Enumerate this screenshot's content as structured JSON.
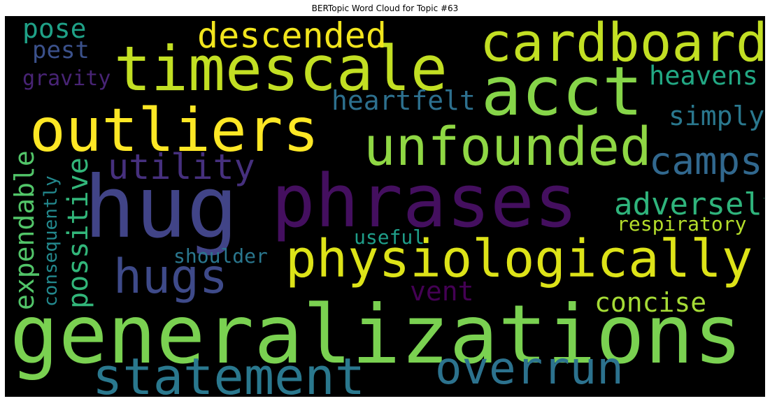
{
  "title": "BERTopic Word Cloud for Topic #63",
  "background_color": "#000000",
  "words": [
    {
      "text": "generalizations",
      "color": "#7ad151"
    },
    {
      "text": "phrases",
      "color": "#440f5f"
    },
    {
      "text": "hug",
      "color": "#414487"
    },
    {
      "text": "timescale",
      "color": "#c2df23"
    },
    {
      "text": "outliers",
      "color": "#fde725"
    },
    {
      "text": "acct",
      "color": "#86d549"
    },
    {
      "text": "cardboard",
      "color": "#c2df23"
    },
    {
      "text": "physiologically",
      "color": "#dde318"
    },
    {
      "text": "unfounded",
      "color": "#8fd744"
    },
    {
      "text": "statement",
      "color": "#2a788e"
    },
    {
      "text": "overrun",
      "color": "#2c728e"
    },
    {
      "text": "hugs",
      "color": "#3e4a89"
    },
    {
      "text": "descended",
      "color": "#f1e51d"
    },
    {
      "text": "utility",
      "color": "#46307e"
    },
    {
      "text": "camps",
      "color": "#31688e"
    },
    {
      "text": "adversely",
      "color": "#2fb47c"
    },
    {
      "text": "heartfelt",
      "color": "#2d708e"
    },
    {
      "text": "heavens",
      "color": "#22a884"
    },
    {
      "text": "simply",
      "color": "#2a788e"
    },
    {
      "text": "concise",
      "color": "#a5db36"
    },
    {
      "text": "respiratory",
      "color": "#b5de2b"
    },
    {
      "text": "possitive",
      "color": "#32b67a"
    },
    {
      "text": "expendable",
      "color": "#52c569"
    },
    {
      "text": "consequently",
      "color": "#23898e"
    },
    {
      "text": "vent",
      "color": "#440154"
    },
    {
      "text": "shoulder",
      "color": "#2a778e"
    },
    {
      "text": "useful",
      "color": "#1f9e89"
    },
    {
      "text": "pose",
      "color": "#1fa187"
    },
    {
      "text": "pest",
      "color": "#3b518b"
    },
    {
      "text": "gravity",
      "color": "#482475"
    }
  ]
}
